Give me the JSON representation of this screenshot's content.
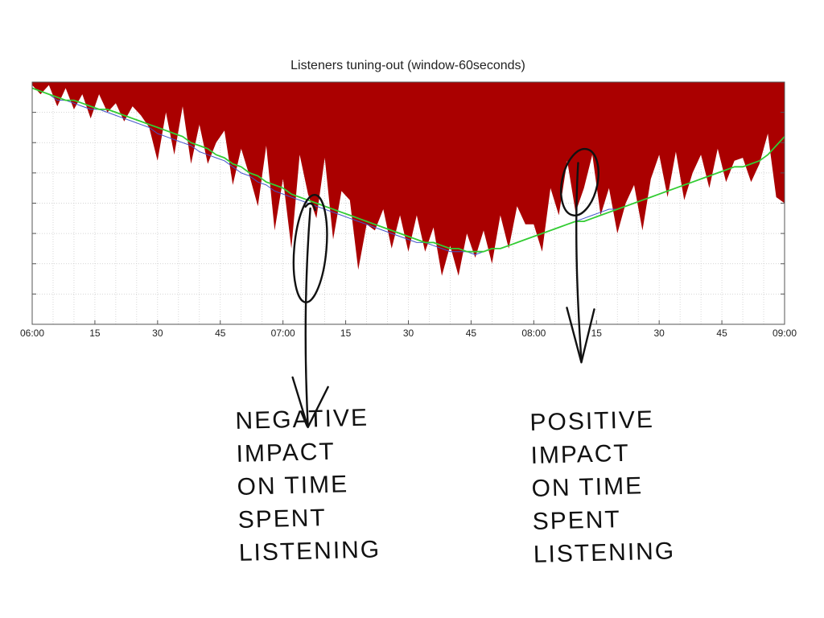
{
  "chart_data": {
    "type": "area",
    "title": "Listeners tuning-out (window-60seconds)",
    "xlabel": "",
    "ylabel": "",
    "x_range_minutes": [
      0,
      180
    ],
    "xticks": [
      {
        "minute": 0,
        "label": "06:00"
      },
      {
        "minute": 15,
        "label": "15"
      },
      {
        "minute": 30,
        "label": "30"
      },
      {
        "minute": 45,
        "label": "45"
      },
      {
        "minute": 60,
        "label": "07:00"
      },
      {
        "minute": 75,
        "label": "15"
      },
      {
        "minute": 90,
        "label": "30"
      },
      {
        "minute": 105,
        "label": "45"
      },
      {
        "minute": 120,
        "label": "08:00"
      },
      {
        "minute": 135,
        "label": "15"
      },
      {
        "minute": 150,
        "label": "30"
      },
      {
        "minute": 165,
        "label": "45"
      },
      {
        "minute": 180,
        "label": "09:00"
      }
    ],
    "y_ticks_unlabeled": 7,
    "ylim": [
      0,
      8
    ],
    "grid": true,
    "series": [
      {
        "color": "#aa0000",
        "style": "filled-from-top"
      },
      {
        "color": "#4455cc",
        "style": "line"
      },
      {
        "color": "#33cc33",
        "style": "line"
      }
    ],
    "x": [
      0,
      2,
      4,
      6,
      8,
      10,
      12,
      14,
      16,
      18,
      20,
      22,
      24,
      26,
      28,
      30,
      32,
      34,
      36,
      38,
      40,
      42,
      44,
      46,
      48,
      50,
      52,
      54,
      56,
      58,
      60,
      62,
      64,
      66,
      68,
      70,
      72,
      74,
      76,
      78,
      80,
      82,
      84,
      86,
      88,
      90,
      92,
      94,
      96,
      98,
      100,
      102,
      104,
      106,
      108,
      110,
      112,
      114,
      116,
      118,
      120,
      122,
      124,
      126,
      128,
      130,
      132,
      134,
      136,
      138,
      140,
      142,
      144,
      146,
      148,
      150,
      152,
      154,
      156,
      158,
      160,
      162,
      164,
      166,
      168,
      170,
      172,
      174,
      176,
      178,
      180
    ],
    "raw": [
      7.9,
      7.6,
      7.9,
      7.2,
      7.8,
      7.1,
      7.6,
      6.8,
      7.6,
      7.0,
      7.3,
      6.7,
      7.2,
      6.9,
      6.5,
      5.4,
      7.0,
      5.6,
      7.2,
      5.3,
      6.6,
      5.3,
      6.0,
      6.4,
      4.6,
      5.8,
      4.9,
      3.9,
      5.9,
      3.1,
      4.8,
      2.5,
      5.6,
      4.3,
      3.5,
      5.5,
      2.8,
      4.4,
      4.1,
      1.8,
      3.3,
      3.1,
      3.8,
      2.5,
      3.6,
      2.4,
      3.6,
      2.4,
      3.2,
      1.6,
      2.6,
      1.6,
      3.0,
      2.2,
      3.1,
      2.0,
      3.6,
      2.5,
      3.9,
      3.3,
      3.3,
      2.4,
      4.5,
      3.6,
      5.4,
      3.7,
      4.5,
      5.6,
      3.6,
      4.5,
      3.0,
      4.0,
      4.6,
      3.1,
      4.8,
      5.6,
      4.2,
      5.7,
      4.1,
      5.0,
      5.6,
      4.5,
      5.8,
      4.7,
      5.4,
      5.5,
      4.7,
      5.3,
      6.3,
      4.2,
      4.0
    ],
    "smooth": [
      7.8,
      7.7,
      7.6,
      7.4,
      7.4,
      7.3,
      7.2,
      7.1,
      7.1,
      7.0,
      6.9,
      6.8,
      6.7,
      6.6,
      6.5,
      6.3,
      6.2,
      6.1,
      6.0,
      5.9,
      5.7,
      5.6,
      5.5,
      5.4,
      5.2,
      5.0,
      4.9,
      4.7,
      4.6,
      4.4,
      4.3,
      4.2,
      4.1,
      4.0,
      3.9,
      3.8,
      3.7,
      3.6,
      3.5,
      3.4,
      3.3,
      3.2,
      3.1,
      3.0,
      2.9,
      2.8,
      2.7,
      2.7,
      2.6,
      2.5,
      2.4,
      2.4,
      2.4,
      2.3,
      2.4,
      2.5,
      2.5,
      2.6,
      2.7,
      2.8,
      2.9,
      3.0,
      3.1,
      3.2,
      3.3,
      3.4,
      3.5,
      3.6,
      3.7,
      3.8,
      3.8,
      3.9,
      4.0,
      4.1,
      4.2,
      4.3,
      4.4,
      4.5,
      4.6,
      4.7,
      4.8,
      4.9,
      5.0,
      5.1,
      5.2,
      5.2,
      5.3,
      5.4,
      5.6,
      5.9,
      6.2
    ],
    "trend": [
      7.8,
      7.7,
      7.6,
      7.5,
      7.4,
      7.4,
      7.3,
      7.2,
      7.1,
      7.1,
      7.0,
      6.9,
      6.8,
      6.7,
      6.6,
      6.5,
      6.4,
      6.3,
      6.2,
      6.0,
      5.9,
      5.8,
      5.6,
      5.5,
      5.3,
      5.2,
      5.0,
      4.9,
      4.7,
      4.6,
      4.5,
      4.3,
      4.2,
      4.1,
      4.0,
      3.9,
      3.8,
      3.7,
      3.6,
      3.5,
      3.4,
      3.3,
      3.2,
      3.1,
      3.0,
      2.9,
      2.8,
      2.7,
      2.7,
      2.6,
      2.5,
      2.5,
      2.4,
      2.4,
      2.4,
      2.5,
      2.5,
      2.6,
      2.7,
      2.8,
      2.9,
      3.0,
      3.1,
      3.2,
      3.3,
      3.4,
      3.4,
      3.5,
      3.6,
      3.7,
      3.8,
      3.9,
      4.0,
      4.1,
      4.2,
      4.3,
      4.4,
      4.5,
      4.6,
      4.7,
      4.8,
      4.9,
      5.0,
      5.1,
      5.2,
      5.2,
      5.3,
      5.4,
      5.6,
      5.9,
      6.2
    ]
  },
  "annotations": {
    "negative_text": "NEGATIVE\nIMPACT\nON TIME\nSPENT\nLISTENING",
    "positive_text": "POSITIVE\nIMPACT\nON TIME\nSPENT\nLISTENING",
    "negative_minute": 65,
    "negative_value": 2.5,
    "positive_minute": 131,
    "positive_value": 4.8
  }
}
